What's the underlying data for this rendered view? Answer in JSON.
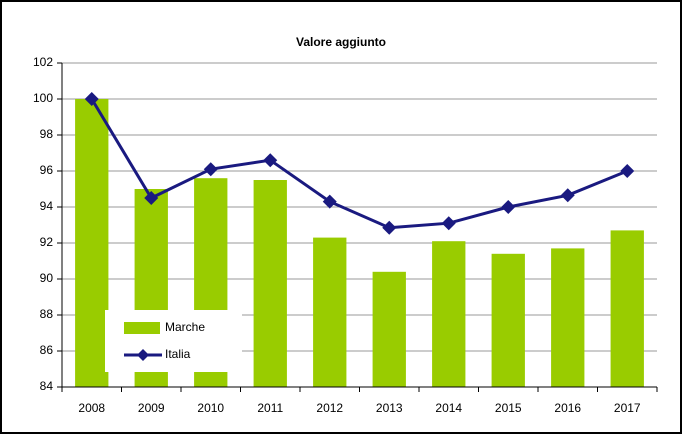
{
  "chart_data": {
    "type": "bar",
    "title": "Valore aggiunto",
    "categories": [
      "2008",
      "2009",
      "2010",
      "2011",
      "2012",
      "2013",
      "2014",
      "2015",
      "2016",
      "2017"
    ],
    "series": [
      {
        "name": "Marche",
        "type": "bar",
        "color": "#99cc00",
        "values": [
          100,
          95.0,
          95.6,
          95.5,
          92.3,
          90.4,
          92.1,
          91.4,
          91.7,
          92.7
        ]
      },
      {
        "name": "Italia",
        "type": "line",
        "color": "#1a1a80",
        "values": [
          100,
          94.5,
          96.1,
          96.6,
          94.3,
          92.85,
          93.1,
          94.0,
          94.65,
          96.0
        ]
      }
    ],
    "ylim": [
      84,
      102
    ],
    "yticks": [
      84,
      86,
      88,
      90,
      92,
      94,
      96,
      98,
      100,
      102
    ],
    "grid": true,
    "legend": "lower-left"
  }
}
